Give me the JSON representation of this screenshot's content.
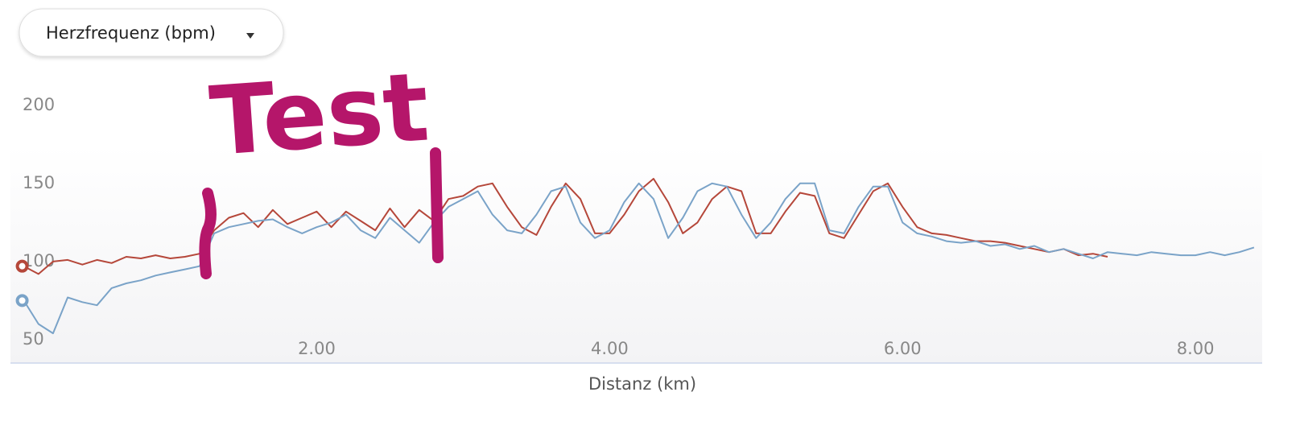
{
  "dropdown_label": "Herzfrequenz (bpm)",
  "chart_data": {
    "type": "line",
    "x_label": "Distanz (km)",
    "annotation": "Test",
    "x": [
      0,
      0.1,
      0.2,
      0.3,
      0.4,
      0.5,
      0.6,
      0.7,
      0.8,
      0.9,
      1,
      1.1,
      1.2,
      1.3,
      1.4,
      1.5,
      1.6,
      1.7,
      1.8,
      1.9,
      2,
      2.1,
      2.2,
      2.3,
      2.4,
      2.5,
      2.6,
      2.7,
      2.8,
      2.9,
      3,
      3.1,
      3.2,
      3.3,
      3.4,
      3.5,
      3.6,
      3.7,
      3.8,
      3.9,
      4,
      4.1,
      4.2,
      4.3,
      4.4,
      4.5,
      4.6,
      4.7,
      4.8,
      4.9,
      5,
      5.1,
      5.2,
      5.3,
      5.4,
      5.5,
      5.6,
      5.7,
      5.8,
      5.9,
      6,
      6.1,
      6.2,
      6.3,
      6.4,
      6.5,
      6.6,
      6.7,
      6.8,
      6.9,
      7,
      7.1,
      7.2,
      7.3,
      7.4,
      7.5,
      7.6,
      7.7,
      7.8,
      7.9,
      8,
      8.1,
      8.2,
      8.3,
      8.4
    ],
    "series": [
      {
        "color": "#b5473a",
        "values": [
          97,
          92,
          100,
          101,
          98,
          101,
          99,
          103,
          102,
          104,
          102,
          103,
          105,
          120,
          128,
          131,
          122,
          133,
          124,
          128,
          132,
          122,
          132,
          126,
          120,
          134,
          122,
          133,
          126,
          140,
          142,
          148,
          150,
          135,
          122,
          117,
          135,
          150,
          140,
          118,
          118,
          130,
          145,
          153,
          138,
          118,
          125,
          140,
          148,
          145,
          118,
          118,
          132,
          144,
          142,
          118,
          115,
          130,
          145,
          150,
          135,
          122,
          118,
          117,
          115,
          113,
          113,
          112,
          110,
          108,
          106,
          108,
          104,
          105,
          103,
          null,
          null,
          null,
          null,
          null,
          null,
          null,
          null,
          null,
          null
        ]
      },
      {
        "color": "#7aa3c8",
        "values": [
          75,
          60,
          54,
          77,
          74,
          72,
          83,
          86,
          88,
          91,
          93,
          95,
          97,
          118,
          122,
          124,
          126,
          127,
          122,
          118,
          122,
          125,
          130,
          120,
          115,
          128,
          120,
          112,
          125,
          135,
          140,
          145,
          130,
          120,
          118,
          130,
          145,
          148,
          125,
          115,
          120,
          138,
          150,
          140,
          115,
          128,
          145,
          150,
          148,
          130,
          115,
          125,
          140,
          150,
          150,
          120,
          118,
          135,
          148,
          148,
          125,
          118,
          116,
          113,
          112,
          113,
          110,
          111,
          108,
          110,
          106,
          108,
          105,
          102,
          106,
          105,
          104,
          106,
          105,
          104,
          104,
          106,
          104,
          106,
          109
        ]
      }
    ],
    "xlim": [
      -0.08,
      8.45
    ],
    "xticks": [
      {
        "value": 2,
        "label": "2.00"
      },
      {
        "value": 4,
        "label": "4.00"
      },
      {
        "value": 6,
        "label": "6.00"
      },
      {
        "value": 8,
        "label": "8.00"
      }
    ],
    "ylim": [
      35,
      220
    ],
    "yticks": [
      50,
      100,
      150,
      200
    ],
    "grid": false
  }
}
